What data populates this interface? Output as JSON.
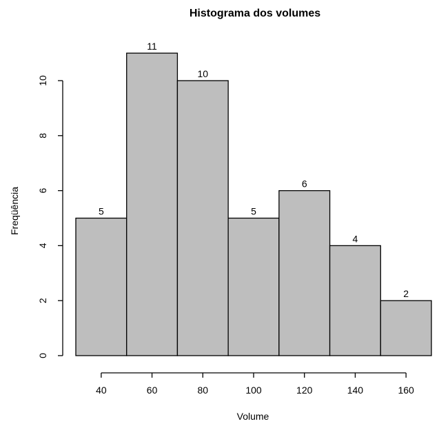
{
  "chart_data": {
    "type": "bar",
    "title": "Histograma dos volumes",
    "xlabel": "Volume",
    "ylabel": "Freqüência",
    "bins": [
      {
        "start": 30,
        "end": 50,
        "count": 5
      },
      {
        "start": 50,
        "end": 70,
        "count": 11
      },
      {
        "start": 70,
        "end": 90,
        "count": 10
      },
      {
        "start": 90,
        "end": 110,
        "count": 5
      },
      {
        "start": 110,
        "end": 130,
        "count": 6
      },
      {
        "start": 130,
        "end": 150,
        "count": 4
      },
      {
        "start": 150,
        "end": 170,
        "count": 2
      }
    ],
    "values": [
      5,
      11,
      10,
      5,
      6,
      4,
      2
    ],
    "data_labels": [
      "5",
      "11",
      "10",
      "5",
      "6",
      "4",
      "2"
    ],
    "xlim": [
      30,
      170
    ],
    "ylim": [
      0,
      11
    ],
    "x_ticks": [
      40,
      60,
      80,
      100,
      120,
      140,
      160
    ],
    "x_tick_labels": [
      "40",
      "60",
      "80",
      "100",
      "120",
      "140",
      "160"
    ],
    "y_ticks": [
      0,
      2,
      4,
      6,
      8,
      10
    ],
    "y_tick_labels": [
      "0",
      "2",
      "4",
      "6",
      "8",
      "10"
    ],
    "grid": false,
    "legend": "none",
    "colors": {
      "bar_fill": "#bebebe",
      "bar_stroke": "#000000",
      "background": "#ffffff"
    }
  }
}
